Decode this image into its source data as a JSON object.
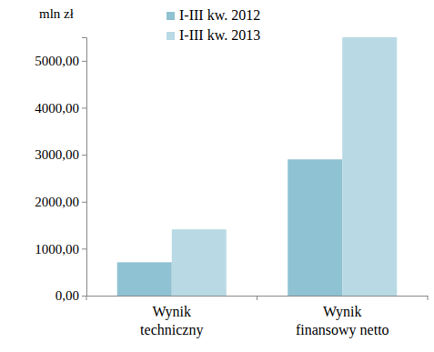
{
  "chart_data": {
    "type": "bar",
    "y_label": "mln zł",
    "categories": [
      "Wynik techniczny",
      "Wynik finansowy netto"
    ],
    "series": [
      {
        "name": "I-III kw. 2012",
        "color": "#8fc2d2",
        "values": [
          710,
          2900
        ]
      },
      {
        "name": "I-III kw. 2013",
        "color": "#b9d9e4",
        "values": [
          1410,
          5500
        ]
      }
    ],
    "ylim": [
      0,
      5500
    ],
    "yticks": [
      {
        "value": 0,
        "label": "0,00"
      },
      {
        "value": 1000,
        "label": "1000,00"
      },
      {
        "value": 2000,
        "label": "2000,00"
      },
      {
        "value": 3000,
        "label": "3000,00"
      },
      {
        "value": 4000,
        "label": "4000,00"
      },
      {
        "value": 5000,
        "label": "5000,00"
      }
    ],
    "grid": false,
    "legend": "top"
  }
}
